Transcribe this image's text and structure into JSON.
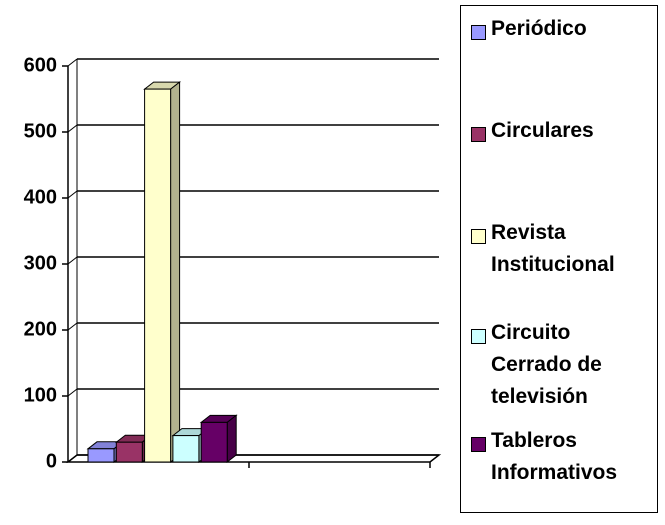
{
  "chart_data": {
    "type": "bar3d",
    "categories": [
      null
    ],
    "series": [
      {
        "name": "Periódico",
        "color": "#9999ff",
        "values": [
          20
        ]
      },
      {
        "name": "Circulares",
        "color": "#993366",
        "values": [
          30
        ]
      },
      {
        "name": "Revista Institucional",
        "color": "#ffffcc",
        "values": [
          565
        ]
      },
      {
        "name": "Circuito Cerrado de televisión",
        "color": "#ccffff",
        "values": [
          40
        ]
      },
      {
        "name": "Tableros Informativos",
        "color": "#660066",
        "values": [
          60
        ]
      }
    ],
    "ylim": [
      0,
      600
    ],
    "yticks": [
      0,
      100,
      200,
      300,
      400,
      500,
      600
    ],
    "grid": true,
    "legend": "right"
  }
}
